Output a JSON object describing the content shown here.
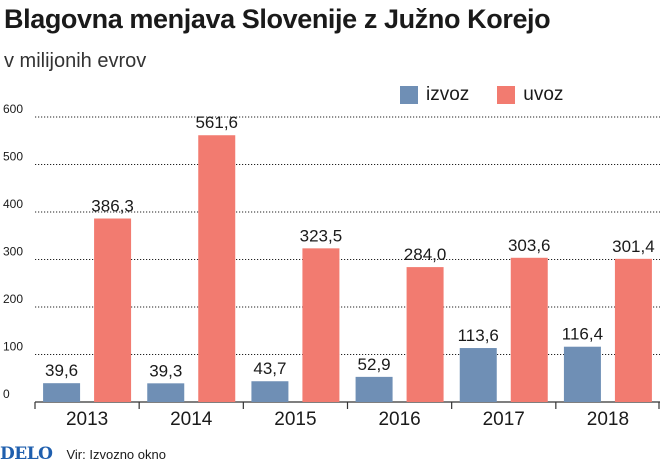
{
  "header": {
    "title": "Blagovna menjava Slovenije z Južno Korejo",
    "subtitle": "v milijonih evrov"
  },
  "footer": {
    "brand": "DELO",
    "source": "Vir: Izvozno okno"
  },
  "colors": {
    "izvoz": "#6f8fb5",
    "uvoz": "#f27b70",
    "grid": "#222222",
    "axis": "#333333"
  },
  "chart_data": {
    "type": "bar",
    "categories": [
      "2013",
      "2014",
      "2015",
      "2016",
      "2017",
      "2018"
    ],
    "series": [
      {
        "name": "izvoz",
        "values": [
          39.6,
          39.3,
          43.7,
          52.9,
          113.6,
          116.4
        ],
        "labels": [
          "39,6",
          "39,3",
          "43,7",
          "52,9",
          "113,6",
          "116,4"
        ]
      },
      {
        "name": "uvoz",
        "values": [
          386.3,
          561.6,
          323.5,
          284.0,
          303.6,
          301.4
        ],
        "labels": [
          "386,3",
          "561,6",
          "323,5",
          "284,0",
          "303,6",
          "301,4"
        ]
      }
    ],
    "yticks": [
      "0",
      "100",
      "200",
      "300",
      "400",
      "500",
      "600"
    ],
    "ylim": [
      0,
      600
    ],
    "legend_position": "top-right",
    "grid": true
  }
}
